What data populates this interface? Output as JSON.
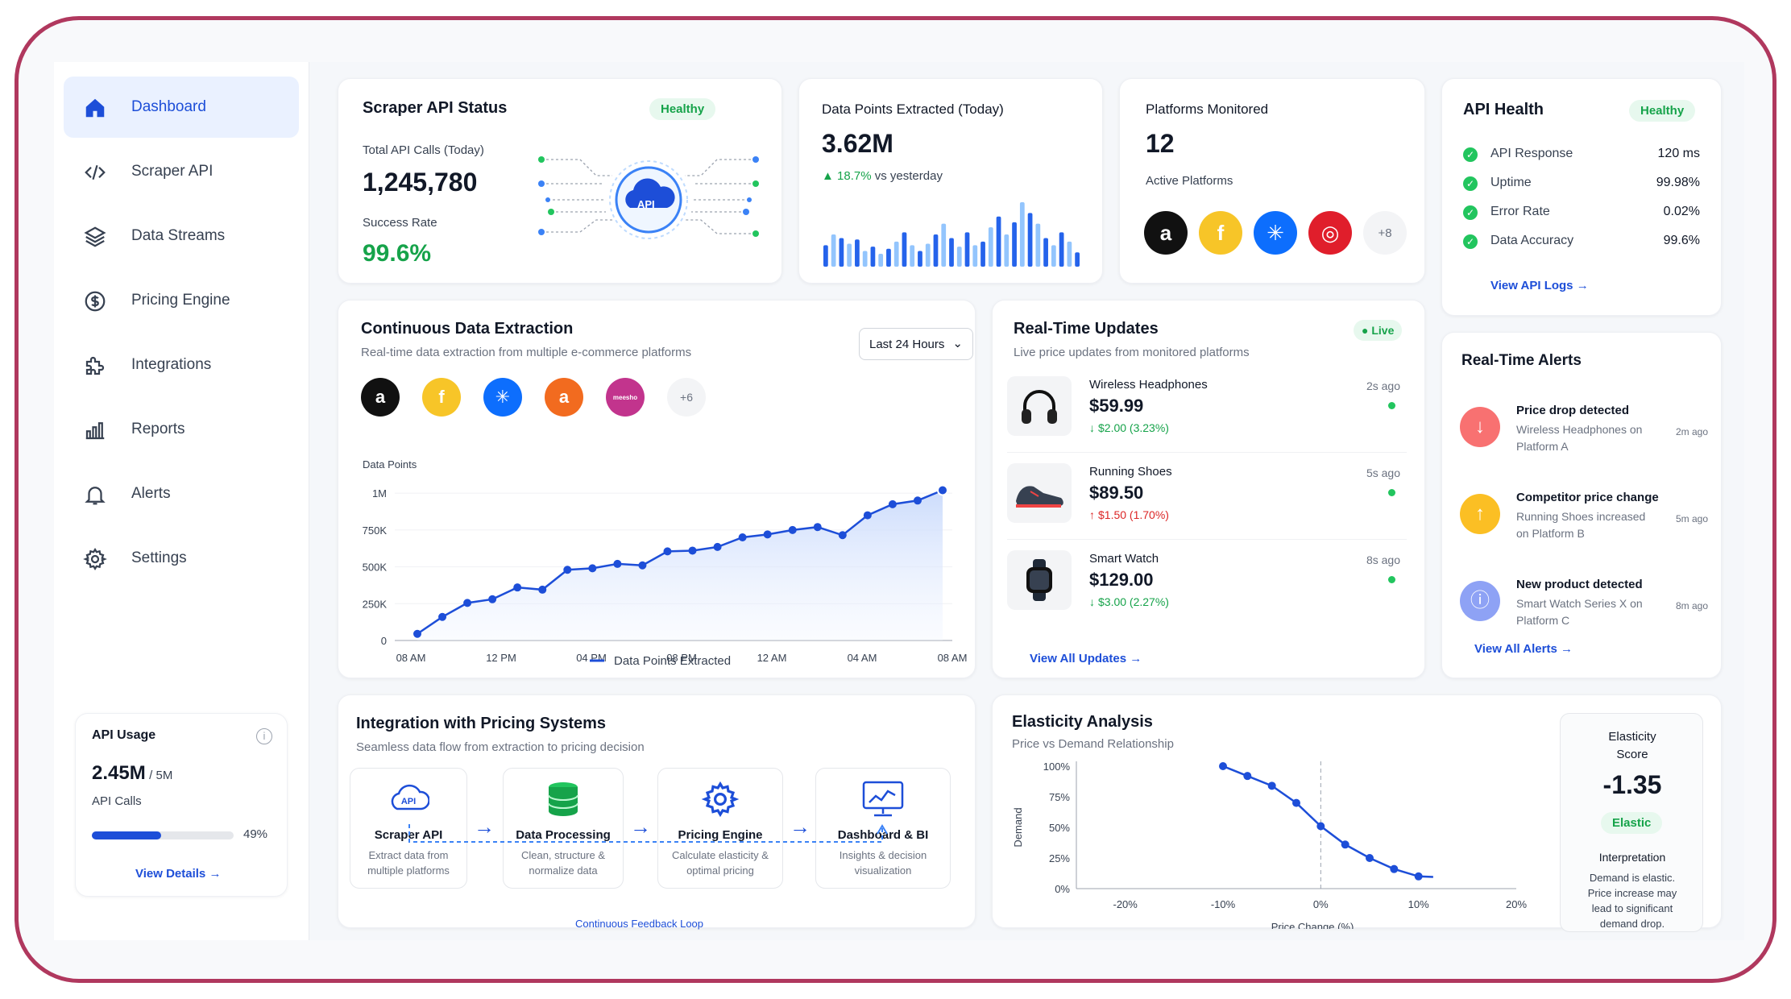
{
  "sidebar": {
    "items": [
      {
        "label": "Dashboard",
        "icon": "home-icon",
        "active": true
      },
      {
        "label": "Scraper API",
        "icon": "code-icon"
      },
      {
        "label": "Data Streams",
        "icon": "layers-icon"
      },
      {
        "label": "Pricing Engine",
        "icon": "dollar-icon"
      },
      {
        "label": "Integrations",
        "icon": "puzzle-icon"
      },
      {
        "label": "Reports",
        "icon": "bar-chart-icon"
      },
      {
        "label": "Alerts",
        "icon": "bell-icon"
      },
      {
        "label": "Settings",
        "icon": "gear-icon"
      }
    ],
    "usage": {
      "title": "API Usage",
      "value": "2.45M",
      "limit": "/ 5M",
      "label": "API Calls",
      "percent_label": "49%",
      "percent": 49,
      "link": "View Details"
    }
  },
  "scraper": {
    "title": "Scraper API Status",
    "badge": "Healthy",
    "calls_label": "Total API Calls (Today)",
    "calls": "1,245,780",
    "rate_label": "Success Rate",
    "rate": "99.6%",
    "api_label": "API"
  },
  "datapoints": {
    "title": "Data Points Extracted (Today)",
    "value": "3.62M",
    "change": "18.7%",
    "change_suffix": "vs yesterday",
    "bars": [
      30,
      45,
      40,
      32,
      38,
      22,
      28,
      18,
      25,
      35,
      48,
      30,
      22,
      32,
      45,
      60,
      40,
      28,
      48,
      30,
      35,
      55,
      70,
      45,
      62,
      90,
      75,
      60,
      40,
      30,
      48,
      35,
      20
    ]
  },
  "platforms": {
    "title": "Platforms Monitored",
    "value": "12",
    "label": "Active Platforms",
    "more": "+8",
    "logos": [
      {
        "name": "amazon-logo",
        "bg": "#111111",
        "glyph": "a"
      },
      {
        "name": "flipkart-logo",
        "bg": "#f7c528",
        "glyph": "f"
      },
      {
        "name": "walmart-logo",
        "bg": "#0d6efd",
        "glyph": "✳"
      },
      {
        "name": "target-logo",
        "bg": "#e01e2b",
        "glyph": "◎"
      }
    ]
  },
  "health": {
    "title": "API Health",
    "badge": "Healthy",
    "rows": [
      {
        "label": "API Response",
        "value": "120 ms"
      },
      {
        "label": "Uptime",
        "value": "99.98%"
      },
      {
        "label": "Error Rate",
        "value": "0.02%"
      },
      {
        "label": "Data Accuracy",
        "value": "99.6%"
      }
    ],
    "link": "View API Logs"
  },
  "extraction": {
    "title": "Continuous Data Extraction",
    "subtitle": "Real-time data extraction from multiple e-commerce platforms",
    "range": "Last 24 Hours",
    "more": "+6",
    "logos": [
      {
        "name": "amazon-logo",
        "bg": "#111111",
        "glyph": "a"
      },
      {
        "name": "flipkart-logo",
        "bg": "#f7c528",
        "glyph": "f"
      },
      {
        "name": "walmart-logo",
        "bg": "#0d6efd",
        "glyph": "✳"
      },
      {
        "name": "ajio-logo",
        "bg": "#f26b1f",
        "glyph": "a"
      },
      {
        "name": "meesho-logo",
        "bg": "#c2348d",
        "glyph": "meesho"
      }
    ]
  },
  "chart_data": {
    "type": "line",
    "ylabel": "Data Points",
    "ylim": [
      0,
      1050000
    ],
    "yticks": [
      {
        "v": 0,
        "l": "0"
      },
      {
        "v": 250000,
        "l": "250K"
      },
      {
        "v": 500000,
        "l": "500K"
      },
      {
        "v": 750000,
        "l": "750K"
      },
      {
        "v": 1000000,
        "l": "1M"
      }
    ],
    "x_ticks": [
      "08 AM",
      "12 PM",
      "04 PM",
      "08 PM",
      "12 AM",
      "04 AM",
      "08 AM"
    ],
    "series": [
      {
        "name": "Data Points Extracted",
        "values": [
          45000,
          160000,
          255000,
          280000,
          360000,
          345000,
          480000,
          490000,
          520000,
          510000,
          605000,
          610000,
          635000,
          700000,
          720000,
          750000,
          770000,
          715000,
          850000,
          925000,
          950000,
          1020000
        ]
      }
    ]
  },
  "updates": {
    "title": "Real-Time Updates",
    "subtitle": "Live price updates from monitored platforms",
    "badge": "Live",
    "items": [
      {
        "name": "Wireless Headphones",
        "price": "$59.99",
        "change": "$2.00 (3.23%)",
        "dir": "down",
        "time": "2s ago",
        "icon": "headphones-icon"
      },
      {
        "name": "Running Shoes",
        "price": "$89.50",
        "change": "$1.50 (1.70%)",
        "dir": "up",
        "time": "5s ago",
        "icon": "shoe-icon"
      },
      {
        "name": "Smart Watch",
        "price": "$129.00",
        "change": "$3.00 (2.27%)",
        "dir": "down",
        "time": "8s ago",
        "icon": "watch-icon"
      }
    ],
    "link": "View All Updates"
  },
  "alerts": {
    "title": "Real-Time Alerts",
    "items": [
      {
        "title": "Price drop detected",
        "desc1": "Wireless Headphones on",
        "desc2": "Platform A",
        "time": "2m ago",
        "color": "#f87171",
        "glyph": "↓",
        "icon": "arrow-down-icon"
      },
      {
        "title": "Competitor price change",
        "desc1": "Running Shoes increased",
        "desc2": "on Platform B",
        "time": "5m ago",
        "color": "#fbbf24",
        "glyph": "↑",
        "icon": "arrow-up-icon"
      },
      {
        "title": "New product detected",
        "desc1": "Smart Watch Series X on",
        "desc2": "Platform C",
        "time": "8m ago",
        "color": "#8ea2f5",
        "glyph": "ⓘ",
        "icon": "info-icon"
      }
    ],
    "link": "View All Alerts"
  },
  "integration": {
    "title": "Integration with Pricing Systems",
    "subtitle": "Seamless data flow from extraction to pricing decision",
    "loop": "Continuous Feedback Loop",
    "steps": [
      {
        "title": "Scraper API",
        "desc1": "Extract data from",
        "desc2": "multiple platforms",
        "icon": "cloud-api-icon"
      },
      {
        "title": "Data Processing",
        "desc1": "Clean, structure &",
        "desc2": "normalize data",
        "icon": "database-icon"
      },
      {
        "title": "Pricing Engine",
        "desc1": "Calculate elasticity &",
        "desc2": "optimal pricing",
        "icon": "gear-icon"
      },
      {
        "title": "Dashboard & BI",
        "desc1": "Insights & decision",
        "desc2": "visualization",
        "icon": "monitor-chart-icon"
      }
    ]
  },
  "elasticity": {
    "title": "Elasticity Analysis",
    "subtitle": "Price vs Demand Relationship",
    "score_title1": "Elasticity",
    "score_title2": "Score",
    "score": "-1.35",
    "score_badge": "Elastic",
    "interp_title": "Interpretation",
    "interp": [
      "Demand is elastic.",
      "Price increase may",
      "lead to significant",
      "demand drop."
    ],
    "chart": {
      "xlabel": "Price Change (%)",
      "ylabel": "Demand",
      "xlim": [
        -25,
        20
      ],
      "ylim": [
        0,
        100
      ],
      "xticks": [
        {
          "v": -20,
          "l": "-20%"
        },
        {
          "v": -10,
          "l": "-10%"
        },
        {
          "v": 0,
          "l": "0%"
        },
        {
          "v": 10,
          "l": "10%"
        },
        {
          "v": 20,
          "l": "20%"
        }
      ],
      "yticks": [
        {
          "v": 0,
          "l": "0%"
        },
        {
          "v": 25,
          "l": "25%"
        },
        {
          "v": 50,
          "l": "50%"
        },
        {
          "v": 75,
          "l": "75%"
        },
        {
          "v": 100,
          "l": "100%"
        }
      ],
      "points": [
        [
          -10,
          100
        ],
        [
          -7.5,
          92
        ],
        [
          -5,
          84
        ],
        [
          -2.5,
          70
        ],
        [
          0,
          51
        ],
        [
          2.5,
          36
        ],
        [
          5,
          25
        ],
        [
          7.5,
          16
        ],
        [
          10,
          10
        ]
      ]
    }
  }
}
